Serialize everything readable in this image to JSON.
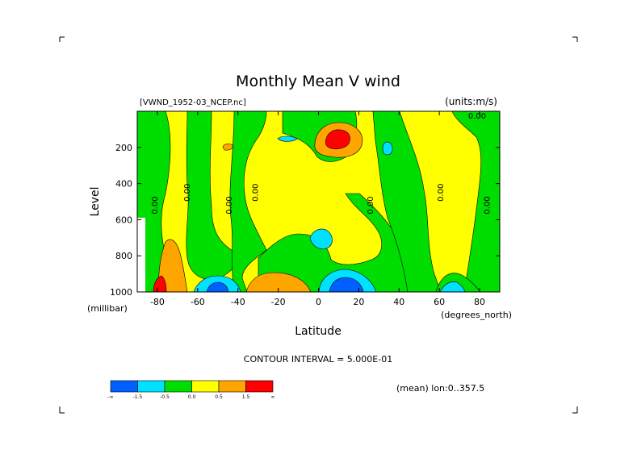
{
  "chart_data": {
    "type": "heatmap",
    "title": "Monthly Mean V wind",
    "dataset_label": "[VWND_1952-03_NCEP.nc]",
    "units_label": "(units:m/s)",
    "xlabel": "Latitude",
    "x_units": "(degrees_north)",
    "ylabel": "Level",
    "y_units": "(millibar)",
    "xlim": [
      -90,
      90
    ],
    "ylim": [
      1000,
      0
    ],
    "x_ticks": [
      "-80",
      "-60",
      "-40",
      "-20",
      "0",
      "20",
      "40",
      "60",
      "80"
    ],
    "x_tick_values": [
      -80,
      -60,
      -40,
      -20,
      0,
      20,
      40,
      60,
      80
    ],
    "y_ticks": [
      "200",
      "400",
      "600",
      "800",
      "1000"
    ],
    "y_tick_values": [
      200,
      400,
      600,
      800,
      1000
    ],
    "contour_interval_text": "CONTOUR INTERVAL = 5.000E-01",
    "mean_note": "(mean) lon:0..357.5",
    "zero_contour_label": "0.00",
    "zero_contour_latitudes": [
      -80,
      -64,
      -43,
      -30,
      27,
      62,
      85
    ],
    "colorbar": {
      "bins": [
        {
          "color": "#0060ff",
          "label": "-∞"
        },
        {
          "color": "#00e0ff",
          "label": "-1.5"
        },
        {
          "color": "#00dd00",
          "label": "-0.5"
        },
        {
          "color": "#ffff00",
          "label": "0.0"
        },
        {
          "color": "#ffa500",
          "label": "0.5"
        },
        {
          "color": "#ff0000",
          "label": "1.5"
        }
      ],
      "end_label": "∞"
    },
    "features": [
      {
        "sign": "positive",
        "lat": 10,
        "level": 160,
        "peak": 2.5
      },
      {
        "sign": "positive",
        "lat": -22,
        "level": 1000,
        "peak": 1.0
      },
      {
        "sign": "positive",
        "lat": -80,
        "level": 940,
        "peak": 2.0
      },
      {
        "sign": "negative",
        "lat": 12,
        "level": 970,
        "peak": -2.0
      },
      {
        "sign": "negative",
        "lat": -52,
        "level": 980,
        "peak": -1.0
      },
      {
        "sign": "negative",
        "lat": 2,
        "level": 730,
        "peak": -0.8
      },
      {
        "sign": "negative",
        "lat": 35,
        "level": 180,
        "peak": -0.7
      },
      {
        "sign": "negative",
        "lat": 65,
        "level": 990,
        "peak": -0.6
      }
    ]
  }
}
